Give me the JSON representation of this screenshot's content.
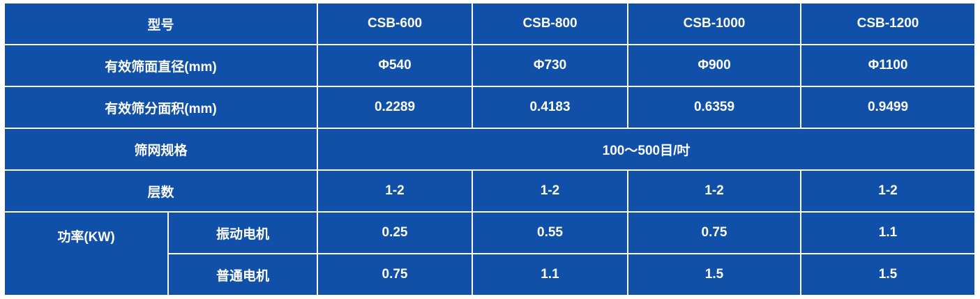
{
  "table": {
    "rows": [
      [
        "型号",
        "CSB-600",
        "CSB-800",
        "CSB-1000",
        "CSB-1200"
      ],
      [
        "有效筛面直径(mm)",
        "Φ540",
        "Φ730",
        "Φ900",
        "Φ1100"
      ],
      [
        "有效筛分面积(mm)",
        "0.2289",
        "0.4183",
        "0.6359",
        "0.9499"
      ],
      [
        "筛网规格",
        "100～500目/吋"
      ],
      [
        "层数",
        "1-2",
        "1-2",
        "1-2",
        "1-2"
      ],
      [
        "功率(KW)",
        "振动电机",
        "0.25",
        "0.55",
        "0.75",
        "1.1"
      ],
      [
        "普通电机",
        "0.75",
        "1.1",
        "1.5",
        "1.5"
      ]
    ]
  }
}
